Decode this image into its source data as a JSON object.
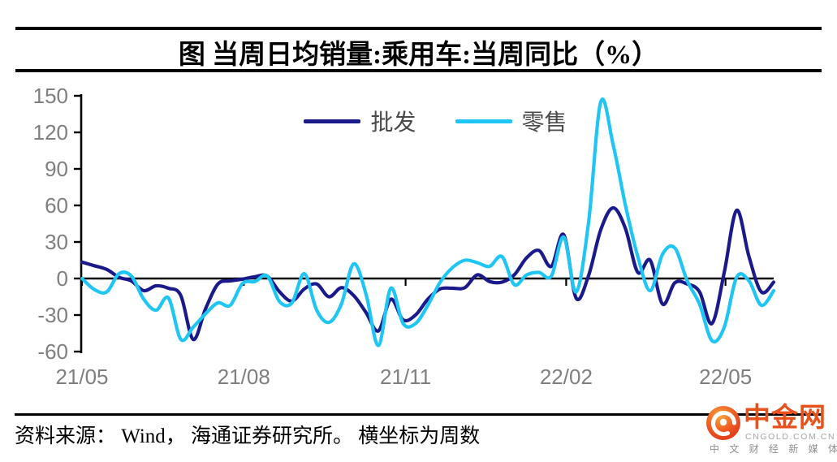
{
  "header": {
    "title": "图 当周日均销量:乘用车:当周同比（%）"
  },
  "chart_data": {
    "type": "line",
    "title": "当周日均销量:乘用车:当周同比（%）",
    "xlabel": "周（21/05 至 22/06，横坐标为周数）",
    "ylabel": "当周同比（%）",
    "ylim": [
      -60,
      150
    ],
    "yticks": [
      150,
      120,
      90,
      60,
      30,
      0,
      -30,
      -60
    ],
    "grid": false,
    "legend_position": "top-center",
    "x_ticks": [
      {
        "label": "21/05",
        "week": 0
      },
      {
        "label": "21/08",
        "week": 13.1
      },
      {
        "label": "21/11",
        "week": 26.2
      },
      {
        "label": "22/02",
        "week": 39.2
      },
      {
        "label": "22/05",
        "week": 52.1
      }
    ],
    "x_unit": "week index from 2021-05",
    "series": [
      {
        "id": "wholesale",
        "name": "批发",
        "color": "#1a1a8a",
        "values": [
          13.5,
          10.5,
          7.5,
          1,
          -2,
          -10,
          -6,
          -8,
          -14,
          -50,
          -25,
          -4.5,
          -2,
          -0.5,
          1.5,
          2,
          -11,
          -18.5,
          -8.5,
          -4.5,
          -15,
          -7.5,
          -14,
          -28,
          -43,
          -17,
          -34,
          -30,
          -17,
          -8.5,
          -8,
          -7.5,
          3,
          -2.5,
          -3,
          3,
          17,
          23,
          10,
          36,
          -16,
          2,
          40,
          58,
          41,
          5,
          15,
          -21,
          -3.5,
          -4.5,
          -11,
          -37,
          5,
          56,
          18,
          -11,
          -3
        ]
      },
      {
        "id": "retail",
        "name": "零售",
        "color": "#1fc6f3",
        "values": [
          0,
          -9,
          -11,
          4,
          2,
          -17,
          -26,
          -16,
          -50,
          -40,
          -29,
          -20,
          -22,
          -4,
          -2.5,
          2,
          -19,
          -20,
          4,
          -26,
          -36,
          -21,
          12,
          -13,
          -55,
          -8,
          -37,
          -37,
          -22,
          -3,
          9,
          15,
          13,
          10,
          18,
          -5,
          3,
          5,
          2,
          34,
          -11,
          45,
          145,
          110,
          60,
          18,
          -10,
          20,
          25,
          -2,
          -21,
          -51,
          -40,
          1,
          -2,
          -22,
          -10
        ]
      }
    ]
  },
  "footer": {
    "source_text": "资料来源： Wind， 海通证券研究所。 横坐标为周数",
    "logo": {
      "title": "中金网",
      "domain": "CNGOLD.COM.CN",
      "tagline": "中 文 财 经 新 媒 体"
    }
  }
}
